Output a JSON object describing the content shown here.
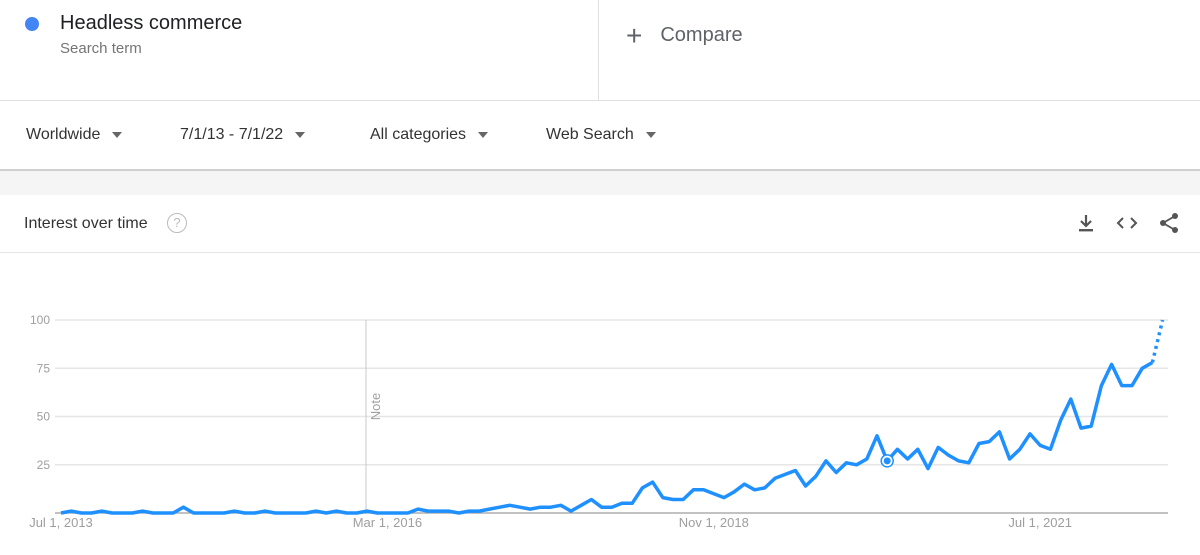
{
  "search_term": {
    "name": "Headless commerce",
    "subtitle": "Search term",
    "color": "#4285f4"
  },
  "compare": {
    "label": "Compare",
    "icon": "plus-icon"
  },
  "filters": [
    {
      "label": "Worldwide"
    },
    {
      "label": "7/1/13 - 7/1/22"
    },
    {
      "label": "All categories"
    },
    {
      "label": "Web Search"
    }
  ],
  "card": {
    "title": "Interest over time",
    "help_icon": "?",
    "tools": [
      "download-icon",
      "embed-icon",
      "share-icon"
    ]
  },
  "chart_data": {
    "type": "line",
    "title": "",
    "xlabel": "",
    "ylabel": "",
    "ylim": [
      0,
      100
    ],
    "y_ticks": [
      "25",
      "50",
      "75",
      "100"
    ],
    "x_ticks": [
      "Jul 1, 2013",
      "Mar 1, 2016",
      "Nov 1, 2018",
      "Jul 1, 2021"
    ],
    "x_start": "2013-07",
    "x_end": "2022-07",
    "x_step": "month",
    "annotation": {
      "label": "Note",
      "date": "2016-01"
    },
    "highlight": {
      "date": "2020-04",
      "value": 27
    },
    "partial_last_point": true,
    "grid": true,
    "series_color": "#1e90ff",
    "values": [
      0,
      1,
      0,
      0,
      1,
      0,
      0,
      0,
      1,
      0,
      0,
      0,
      3,
      0,
      0,
      0,
      0,
      1,
      0,
      0,
      1,
      0,
      0,
      0,
      0,
      1,
      0,
      1,
      0,
      0,
      1,
      0,
      0,
      0,
      0,
      2,
      1,
      1,
      1,
      0,
      1,
      1,
      2,
      3,
      4,
      3,
      2,
      3,
      3,
      4,
      1,
      4,
      7,
      3,
      3,
      5,
      5,
      13,
      16,
      8,
      7,
      7,
      12,
      12,
      10,
      8,
      11,
      15,
      12,
      13,
      18,
      20,
      22,
      14,
      19,
      27,
      21,
      26,
      25,
      28,
      40,
      27,
      33,
      28,
      33,
      23,
      34,
      30,
      27,
      26,
      36,
      37,
      42,
      28,
      33,
      41,
      35,
      33,
      48,
      59,
      44,
      45,
      66,
      77,
      66,
      66,
      75,
      78,
      100
    ]
  }
}
